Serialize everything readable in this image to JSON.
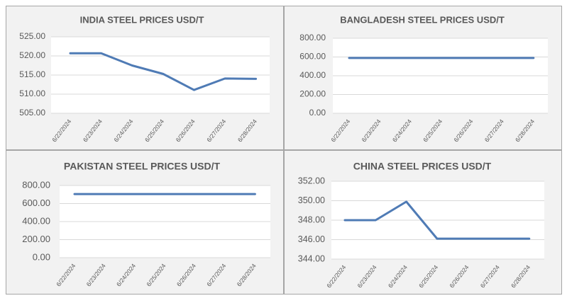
{
  "chart_data": [
    {
      "type": "line",
      "title": "INDIA STEEL PRICES USD/T",
      "x": [
        "6/22/2024",
        "6/23/2024",
        "6/24/2024",
        "6/25/2024",
        "6/26/2024",
        "6/27/2024",
        "6/28/2024"
      ],
      "series": [
        {
          "values": [
            520.7,
            520.7,
            517.5,
            515.3,
            511.1,
            514.1,
            514.0
          ]
        }
      ],
      "yticks": [
        "525.00",
        "520.00",
        "515.00",
        "510.00",
        "505.00"
      ],
      "ylim": [
        505,
        525
      ],
      "grid": true,
      "color": "#4f7bb5"
    },
    {
      "type": "line",
      "title": "BANGLADESH STEEL PRICES USD/T",
      "x": [
        "6/22/2024",
        "6/23/2024",
        "6/24/2024",
        "6/25/2024",
        "6/26/2024",
        "6/27/2024",
        "6/28/2024"
      ],
      "series": [
        {
          "values": [
            590,
            590,
            590,
            590,
            590,
            590,
            590
          ]
        }
      ],
      "yticks": [
        "800.00",
        "600.00",
        "400.00",
        "200.00",
        "0.00"
      ],
      "ylim": [
        0,
        800
      ],
      "grid": true,
      "color": "#4f7bb5"
    },
    {
      "type": "line",
      "title": "PAKISTAN STEEL PRICES USD/T",
      "x": [
        "6/22/2024",
        "6/23/2024",
        "6/24/2024",
        "6/25/2024",
        "6/26/2024",
        "6/27/2024",
        "6/28/2024"
      ],
      "series": [
        {
          "values": [
            705,
            705,
            705,
            705,
            705,
            705,
            705
          ]
        }
      ],
      "yticks": [
        "800.00",
        "600.00",
        "400.00",
        "200.00",
        "0.00"
      ],
      "ylim": [
        0,
        800
      ],
      "grid": true,
      "color": "#4f7bb5"
    },
    {
      "type": "line",
      "title": "CHINA STEEL PRICES USD/T",
      "x": [
        "6/22/2024",
        "6/23/2024",
        "6/24/2024",
        "6/25/2024",
        "6/26/2024",
        "6/27/2024",
        "6/28/2024"
      ],
      "series": [
        {
          "values": [
            348.0,
            348.0,
            349.9,
            346.1,
            346.1,
            346.1,
            346.1
          ]
        }
      ],
      "yticks": [
        "352.00",
        "350.00",
        "348.00",
        "346.00",
        "344.00"
      ],
      "ylim": [
        344,
        352
      ],
      "grid": true,
      "color": "#4f7bb5"
    }
  ]
}
